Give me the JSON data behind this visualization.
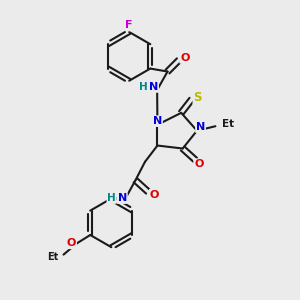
{
  "bg_color": "#ebebeb",
  "colors": {
    "C": "#1a1a1a",
    "N": "#0000dd",
    "O": "#dd0000",
    "S": "#bbbb00",
    "F": "#cc00cc",
    "NH": "#008888",
    "bond": "#1a1a1a"
  },
  "figsize": [
    3.0,
    3.0
  ],
  "dpi": 100,
  "xlim": [
    0,
    10
  ],
  "ylim": [
    0,
    10
  ]
}
